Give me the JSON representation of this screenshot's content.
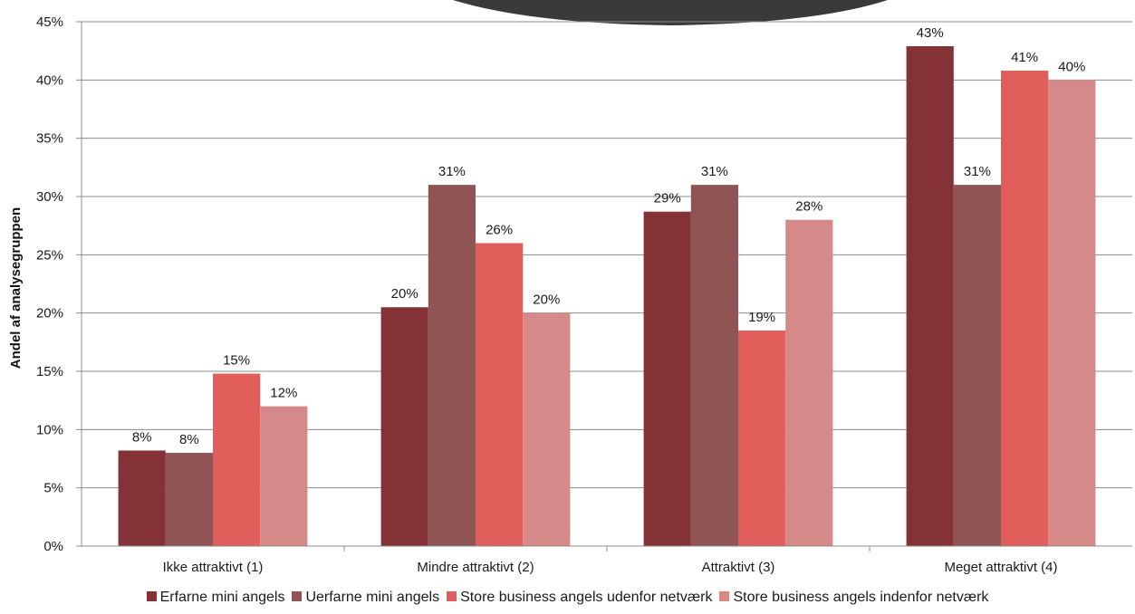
{
  "colors": {
    "series": [
      "#843236",
      "#905454",
      "#e15e5a",
      "#d58a89"
    ],
    "axis": "#8c8c8c",
    "grid": "#8c8c8c"
  },
  "chart_data": {
    "type": "bar",
    "title": "",
    "xlabel": "",
    "ylabel": "Andel af analysegruppen",
    "ylim": [
      0,
      45
    ],
    "ytick_step": 5,
    "ytick_format": "percent",
    "grid": true,
    "legend_position": "bottom",
    "categories": [
      "Ikke attraktivt (1)",
      "Mindre attraktivt (2)",
      "Attraktivt (3)",
      "Meget attraktivt (4)"
    ],
    "series": [
      {
        "name": "Erfarne mini angels",
        "values": [
          8.2,
          20.5,
          28.7,
          42.9
        ],
        "labels": [
          "8%",
          "20%",
          "29%",
          "43%"
        ]
      },
      {
        "name": "Uerfarne mini angels",
        "values": [
          8.0,
          31.0,
          31.0,
          31.0
        ],
        "labels": [
          "8%",
          "31%",
          "31%",
          "31%"
        ]
      },
      {
        "name": "Store business angels udenfor netværk",
        "values": [
          14.8,
          26.0,
          18.5,
          40.8
        ],
        "labels": [
          "15%",
          "26%",
          "19%",
          "41%"
        ]
      },
      {
        "name": "Store business angels indenfor netværk",
        "values": [
          12.0,
          20.0,
          28.0,
          40.0
        ],
        "labels": [
          "12%",
          "20%",
          "28%",
          "40%"
        ]
      }
    ]
  }
}
